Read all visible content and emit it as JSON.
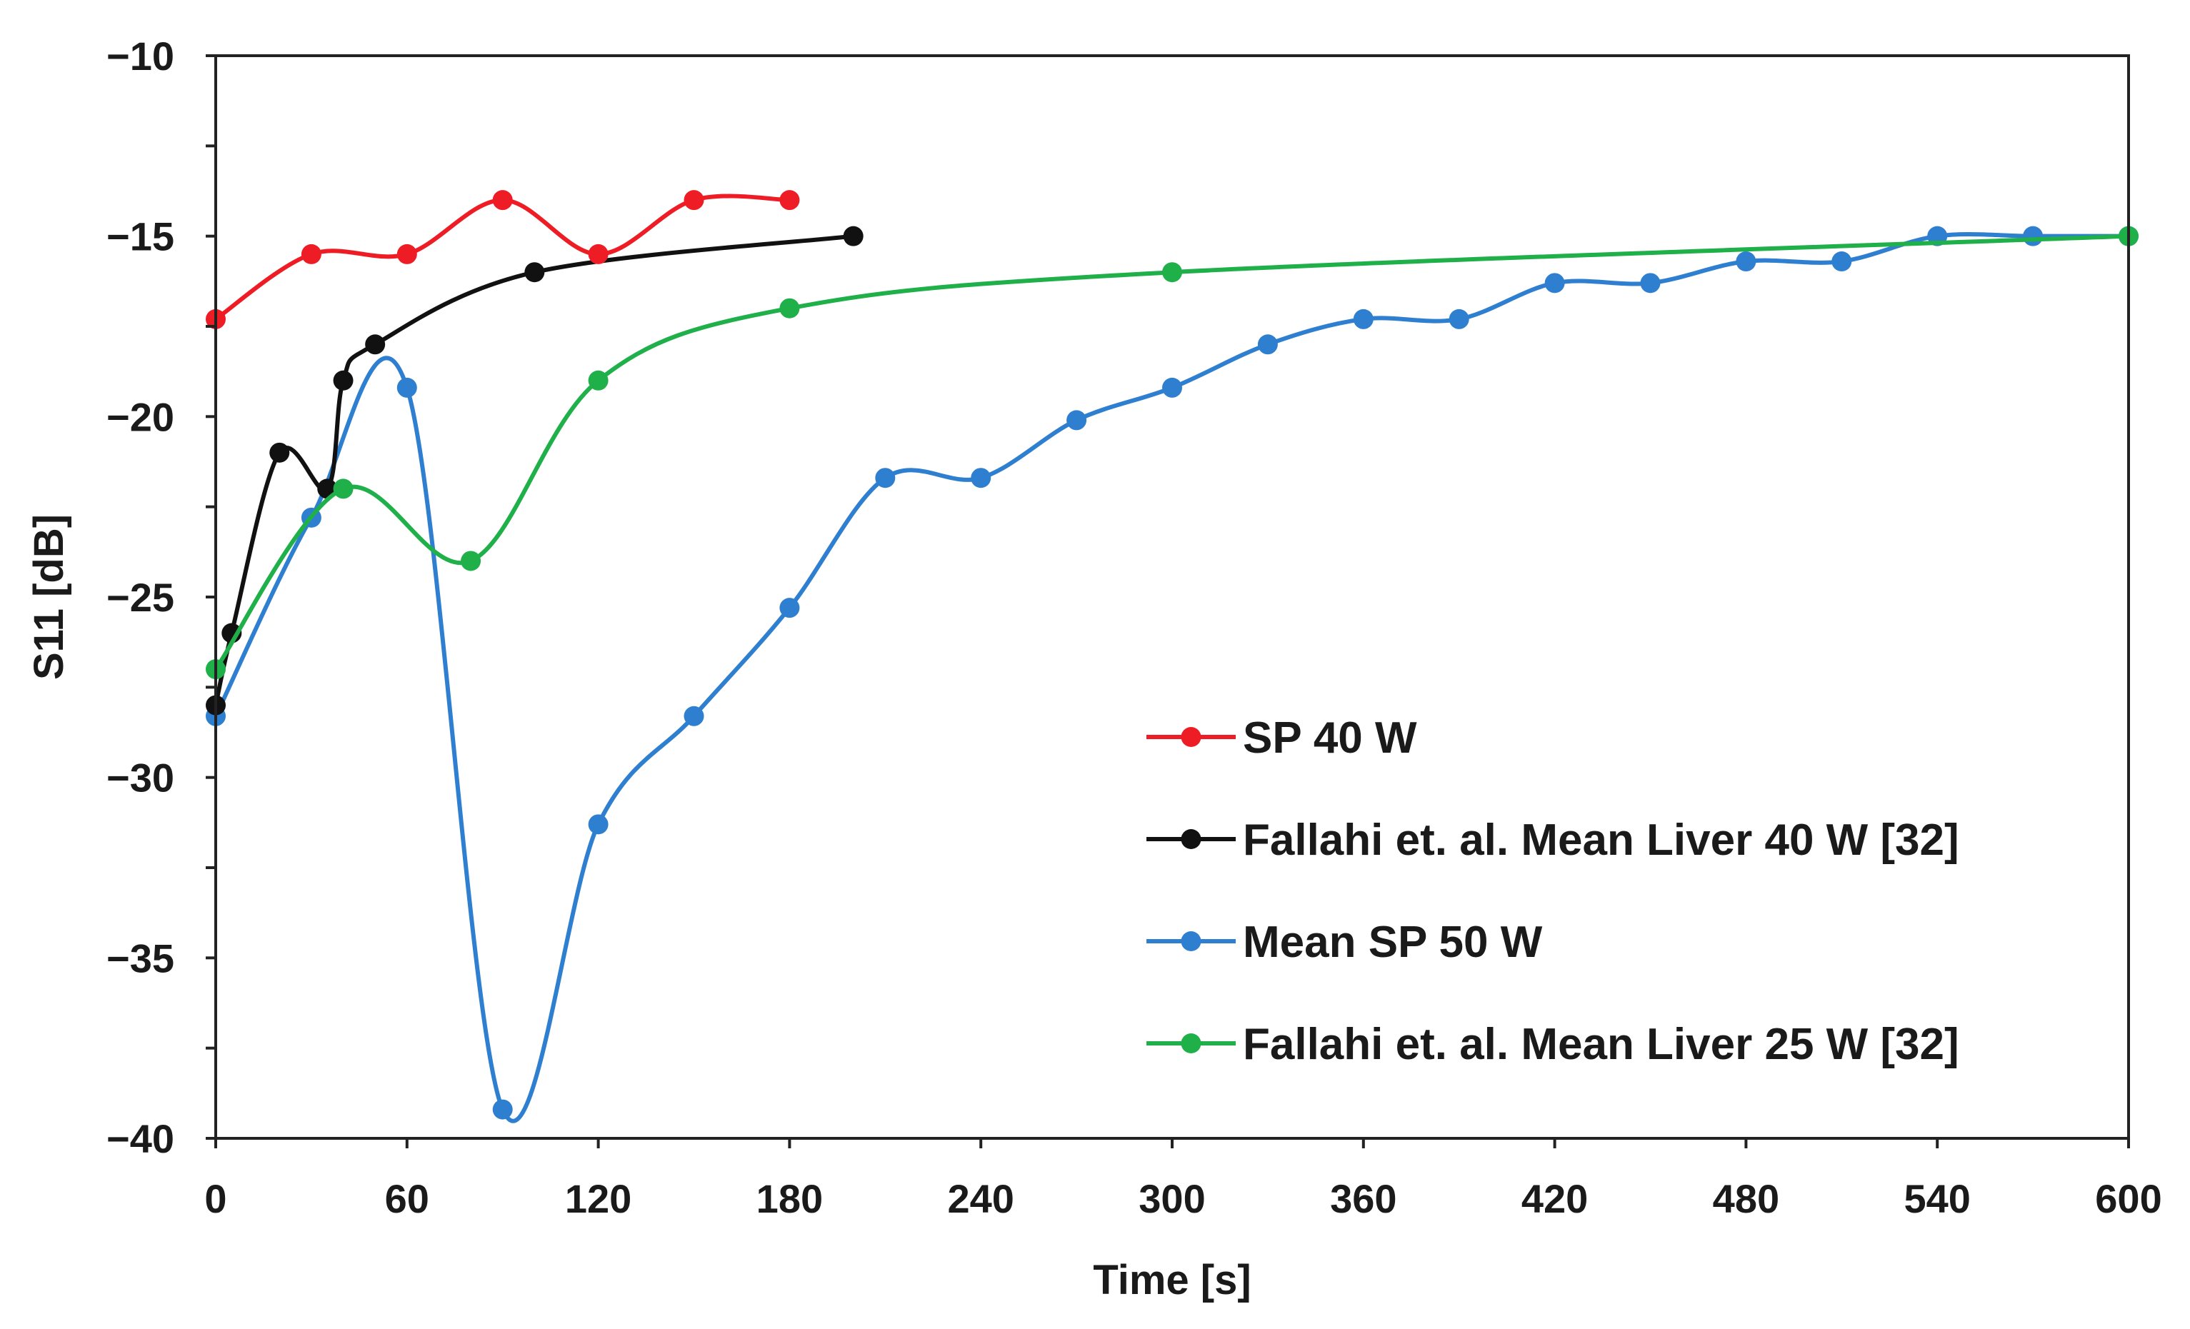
{
  "chart_data": {
    "type": "line",
    "title": "",
    "xlabel": "Time [s]",
    "ylabel": "S11 [dB]",
    "xlim": [
      0,
      600
    ],
    "ylim": [
      -40,
      -10
    ],
    "xticks": [
      "0",
      "60",
      "120",
      "180",
      "240",
      "300",
      "360",
      "420",
      "480",
      "540",
      "600"
    ],
    "yticks": [
      "−10",
      "−15",
      "−20",
      "−25",
      "−30",
      "−35",
      "−40"
    ],
    "grid": false,
    "legend_position": "bottom-right",
    "series": [
      {
        "name": "SP 40 W",
        "color": "#ee1c25",
        "x": [
          0,
          30,
          60,
          90,
          120,
          150,
          180
        ],
        "y": [
          -17.3,
          -15.5,
          -15.5,
          -14.0,
          -15.5,
          -14.0,
          -14.0
        ]
      },
      {
        "name": "Fallahi et. al. Mean Liver 40 W [32]",
        "color": "#111111",
        "x": [
          0,
          5,
          20,
          35,
          40,
          50,
          100,
          200
        ],
        "y": [
          -28.0,
          -26.0,
          -21.0,
          -22.0,
          -19.0,
          -18.0,
          -16.0,
          -15.0
        ]
      },
      {
        "name": "Mean SP 50 W",
        "color": "#2f7fd0",
        "x": [
          0,
          30,
          60,
          90,
          120,
          150,
          180,
          210,
          240,
          270,
          300,
          330,
          360,
          390,
          420,
          450,
          480,
          510,
          540,
          570,
          600
        ],
        "y": [
          -28.3,
          -22.8,
          -19.2,
          -39.2,
          -31.3,
          -28.3,
          -25.3,
          -21.7,
          -21.7,
          -20.1,
          -19.2,
          -18.0,
          -17.3,
          -17.3,
          -16.3,
          -16.3,
          -15.7,
          -15.7,
          -15.0,
          -15.0,
          -15.0
        ]
      },
      {
        "name": "Fallahi et. al. Mean Liver 25 W [32]",
        "color": "#1fb04a",
        "x": [
          0,
          40,
          80,
          120,
          180,
          300,
          600
        ],
        "y": [
          -27.0,
          -22.0,
          -24.0,
          -19.0,
          -17.0,
          -16.0,
          -15.0
        ]
      }
    ]
  }
}
